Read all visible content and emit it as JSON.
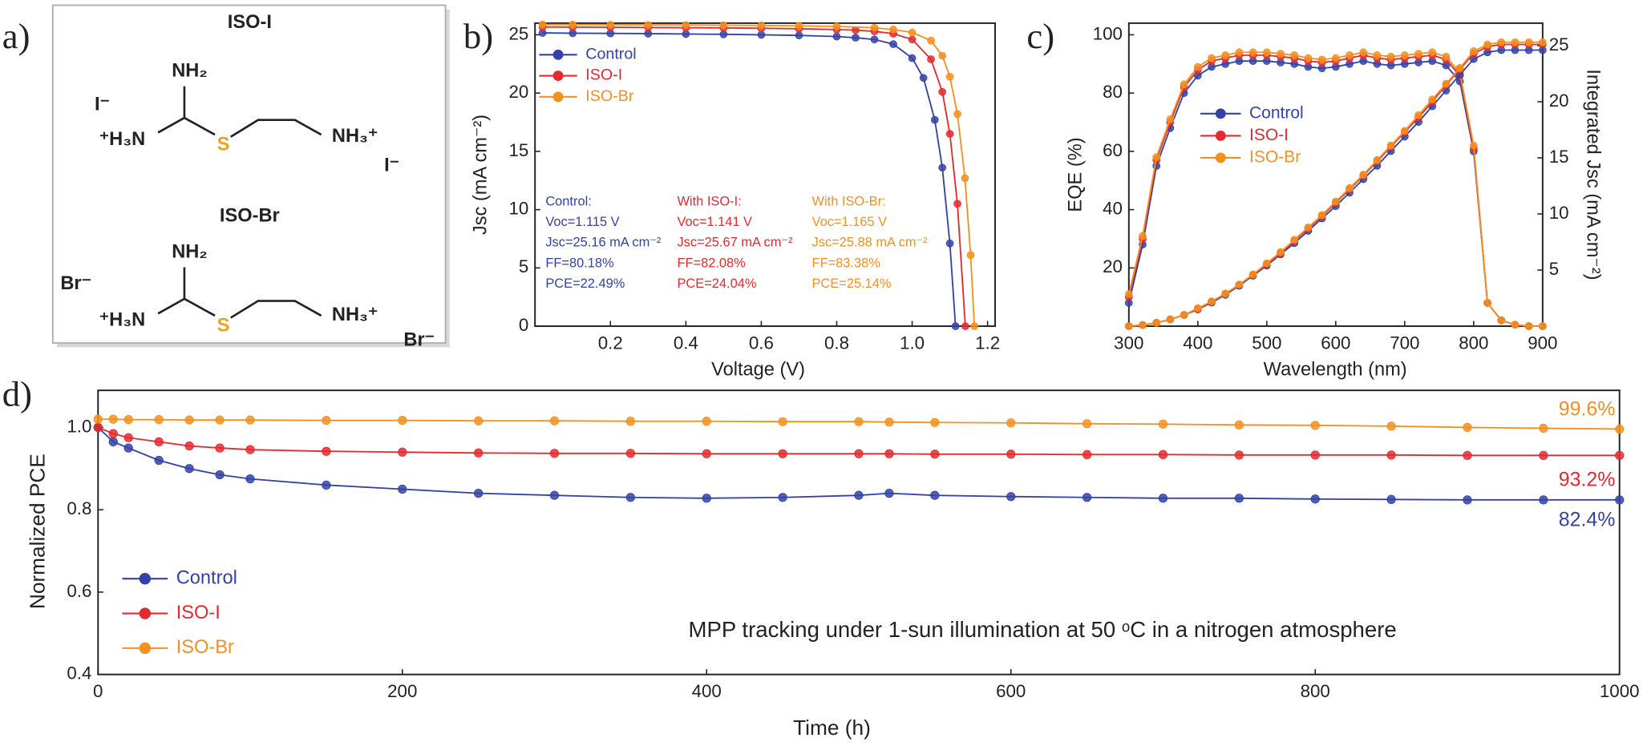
{
  "structures": {
    "panel": "a)",
    "molecules": [
      {
        "name": "ISO-I",
        "atoms": [
          "NH₂",
          "⁺H₃N",
          "S",
          "NH₃⁺"
        ],
        "counterions": [
          "I⁻",
          "I⁻"
        ]
      },
      {
        "name": "ISO-Br",
        "atoms": [
          "NH₂",
          "⁺H₃N",
          "S",
          "NH₃⁺"
        ],
        "counterions": [
          "Br⁻",
          "Br⁻"
        ]
      }
    ]
  },
  "chart_data": [
    {
      "type": "line",
      "panel": "b)",
      "x_label": "Voltage (V)",
      "y_label": "Jsc (mA cm⁻²)",
      "xlim": [
        0,
        1.22
      ],
      "ylim": [
        0,
        26
      ],
      "xticks": [
        0.2,
        0.4,
        0.6,
        0.8,
        {
          "value": 1,
          "label": "1.0"
        },
        1.2
      ],
      "yticks": [
        0,
        5,
        10,
        15,
        20,
        25
      ],
      "legend": "upper left",
      "series": [
        {
          "name": "Control",
          "color": "#3342a8",
          "x": [
            0.02,
            0.1,
            0.2,
            0.3,
            0.4,
            0.5,
            0.6,
            0.7,
            0.8,
            0.85,
            0.9,
            0.95,
            1.0,
            1.03,
            1.06,
            1.08,
            1.1,
            1.115
          ],
          "values": [
            25.16,
            25.14,
            25.12,
            25.1,
            25.07,
            25.04,
            25.0,
            24.95,
            24.85,
            24.75,
            24.6,
            24.2,
            23.0,
            21.3,
            17.7,
            13.6,
            7.1,
            0
          ]
        },
        {
          "name": "ISO-I",
          "color": "#e52a2f",
          "x": [
            0.02,
            0.1,
            0.2,
            0.3,
            0.4,
            0.5,
            0.6,
            0.7,
            0.8,
            0.85,
            0.9,
            0.95,
            1.0,
            1.05,
            1.08,
            1.1,
            1.12,
            1.141
          ],
          "values": [
            25.67,
            25.66,
            25.65,
            25.63,
            25.61,
            25.59,
            25.56,
            25.52,
            25.45,
            25.4,
            25.3,
            25.1,
            24.6,
            22.9,
            20.1,
            16.5,
            10.5,
            0
          ]
        },
        {
          "name": "ISO-Br",
          "color": "#f4901f",
          "x": [
            0.02,
            0.1,
            0.2,
            0.3,
            0.4,
            0.5,
            0.6,
            0.7,
            0.8,
            0.9,
            0.95,
            1.0,
            1.05,
            1.08,
            1.1,
            1.12,
            1.14,
            1.155,
            1.165
          ],
          "values": [
            25.88,
            25.87,
            25.86,
            25.85,
            25.84,
            25.82,
            25.8,
            25.77,
            25.72,
            25.6,
            25.45,
            25.2,
            24.5,
            23.2,
            21.4,
            18.2,
            12.7,
            6.1,
            0
          ]
        }
      ],
      "annotations": [
        {
          "color": "#3342a8",
          "lines": [
            "Control:",
            "Voc=1.115 V",
            "Jsc=25.16 mA cm⁻²",
            "FF=80.18%",
            "PCE=22.49%"
          ]
        },
        {
          "color": "#e52a2f",
          "lines": [
            "With ISO-I:",
            "Voc=1.141 V",
            "Jsc=25.67 mA cm⁻²",
            "FF=82.08%",
            "PCE=24.04%"
          ]
        },
        {
          "color": "#f4901f",
          "lines": [
            "With ISO-Br:",
            "Voc=1.165 V",
            "Jsc=25.88 mA cm⁻²",
            "FF=83.38%",
            "PCE=25.14%"
          ]
        }
      ]
    },
    {
      "type": "line",
      "panel": "c)",
      "x_label": "Wavelength (nm)",
      "y_label": "EQE (%)",
      "y2_label": "Integrated Jsc (mA cm⁻²)",
      "xlim": [
        300,
        900
      ],
      "ylim": [
        0,
        104
      ],
      "y2lim": [
        0,
        27
      ],
      "xticks": [
        300,
        400,
        500,
        600,
        700,
        800,
        900
      ],
      "yticks": [
        20,
        40,
        60,
        80,
        100
      ],
      "y2ticks": [
        5,
        10,
        15,
        20,
        25
      ],
      "legend": "upper left",
      "x": [
        300,
        320,
        340,
        360,
        380,
        400,
        420,
        440,
        460,
        480,
        500,
        520,
        540,
        560,
        580,
        600,
        620,
        640,
        660,
        680,
        700,
        720,
        740,
        760,
        780,
        800,
        820,
        840,
        860,
        880,
        900
      ],
      "series": [
        {
          "name": "Control",
          "color": "#3342a8",
          "values": [
            8,
            28,
            55,
            68,
            80,
            86,
            89,
            90,
            91,
            91,
            91,
            90.5,
            90,
            89,
            88.5,
            89,
            90,
            91,
            90,
            89.5,
            90,
            90.5,
            91,
            89.5,
            84,
            60,
            8,
            2,
            0.5,
            0,
            0
          ]
        },
        {
          "name": "ISO-I",
          "color": "#e52a2f",
          "values": [
            10,
            30,
            57,
            70,
            82,
            88,
            91,
            92,
            93,
            93,
            93,
            92.5,
            92,
            91,
            90.5,
            91,
            92,
            93,
            92,
            91.5,
            92,
            92.5,
            93,
            91.5,
            86,
            61,
            8,
            2,
            0.5,
            0,
            0
          ]
        },
        {
          "name": "ISO-Br",
          "color": "#f4901f",
          "values": [
            11,
            31,
            58,
            71,
            83,
            89,
            92,
            93,
            94,
            94,
            94,
            93.5,
            93,
            92,
            91.5,
            92,
            93,
            94,
            93,
            92.5,
            93,
            93.5,
            94,
            92.5,
            87,
            62,
            8,
            2,
            0.5,
            0,
            0
          ]
        },
        {
          "color": "#3342a8",
          "axis": "y2",
          "values": [
            0,
            0.1,
            0.3,
            0.6,
            1.0,
            1.5,
            2.1,
            2.8,
            3.6,
            4.5,
            5.4,
            6.4,
            7.4,
            8.5,
            9.6,
            10.7,
            11.9,
            13.1,
            14.3,
            15.6,
            16.9,
            18.2,
            19.6,
            21.0,
            22.4,
            23.8,
            24.4,
            24.6,
            24.6,
            24.6,
            24.6
          ]
        },
        {
          "color": "#e52a2f",
          "axis": "y2",
          "values": [
            0,
            0.1,
            0.3,
            0.6,
            1.0,
            1.5,
            2.2,
            2.9,
            3.7,
            4.6,
            5.5,
            6.5,
            7.6,
            8.7,
            9.8,
            11.0,
            12.2,
            13.4,
            14.7,
            16.0,
            17.3,
            18.6,
            20.0,
            21.5,
            22.9,
            24.3,
            24.9,
            25.1,
            25.1,
            25.1,
            25.1
          ]
        },
        {
          "color": "#f4901f",
          "axis": "y2",
          "values": [
            0,
            0.1,
            0.3,
            0.6,
            1.0,
            1.6,
            2.2,
            2.9,
            3.7,
            4.6,
            5.6,
            6.6,
            7.7,
            8.8,
            9.9,
            11.1,
            12.3,
            13.5,
            14.8,
            16.1,
            17.4,
            18.8,
            20.2,
            21.6,
            23.0,
            24.5,
            25.1,
            25.3,
            25.3,
            25.3,
            25.3
          ]
        }
      ]
    },
    {
      "type": "line",
      "panel": "d)",
      "x_label": "Time (h)",
      "y_label": "Normalized PCE",
      "xlim": [
        0,
        1000
      ],
      "ylim": [
        0.4,
        1.09
      ],
      "xticks": [
        0,
        200,
        400,
        600,
        800,
        1000
      ],
      "yticks": [
        0.4,
        0.6,
        0.8,
        {
          "value": 1,
          "label": "1.0"
        }
      ],
      "legend": "lower left",
      "x": [
        0,
        10,
        20,
        40,
        60,
        80,
        100,
        150,
        200,
        250,
        300,
        350,
        400,
        450,
        500,
        520,
        550,
        600,
        650,
        700,
        750,
        800,
        850,
        900,
        950,
        1000
      ],
      "series": [
        {
          "name": "Control",
          "color": "#3342a8",
          "label": "82.4%",
          "values": [
            1.0,
            0.965,
            0.95,
            0.92,
            0.9,
            0.885,
            0.875,
            0.86,
            0.85,
            0.84,
            0.835,
            0.83,
            0.828,
            0.83,
            0.835,
            0.84,
            0.835,
            0.832,
            0.83,
            0.828,
            0.828,
            0.826,
            0.825,
            0.824,
            0.824,
            0.824
          ]
        },
        {
          "name": "ISO-I",
          "color": "#e52a2f",
          "label": "93.2%",
          "values": [
            1.0,
            0.985,
            0.975,
            0.965,
            0.955,
            0.95,
            0.946,
            0.942,
            0.94,
            0.938,
            0.937,
            0.937,
            0.936,
            0.936,
            0.936,
            0.936,
            0.935,
            0.935,
            0.934,
            0.934,
            0.933,
            0.933,
            0.933,
            0.932,
            0.932,
            0.932
          ]
        },
        {
          "name": "ISO-Br",
          "color": "#f4901f",
          "label": "99.6%",
          "values": [
            1.02,
            1.02,
            1.019,
            1.019,
            1.018,
            1.018,
            1.018,
            1.017,
            1.017,
            1.016,
            1.016,
            1.015,
            1.015,
            1.014,
            1.014,
            1.013,
            1.012,
            1.011,
            1.009,
            1.008,
            1.006,
            1.005,
            1.003,
            1.0,
            0.998,
            0.996
          ]
        }
      ],
      "annotation": "MPP tracking under 1-sun illumination at 50 ᵒC in a nitrogen atmosphere"
    }
  ]
}
